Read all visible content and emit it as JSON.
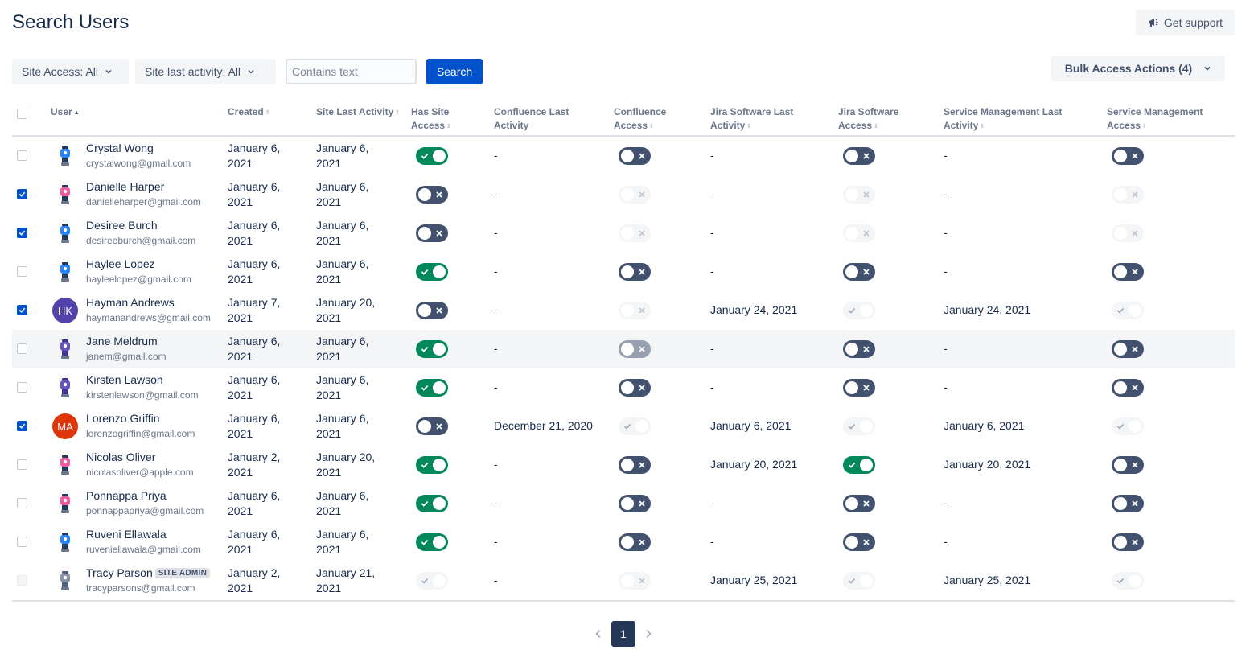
{
  "page": {
    "title": "Search Users"
  },
  "support": {
    "label": "Get support",
    "icon": "megaphone-icon"
  },
  "filters": {
    "site_access": "Site Access: All",
    "site_last_activity": "Site last activity: All",
    "search_placeholder": "Contains text",
    "search_label": "Search",
    "bulk_label": "Bulk Access Actions (4)"
  },
  "columns": {
    "user": "User",
    "created": "Created",
    "site_last_activity": "Site Last Activity",
    "has_site_access_1": "Has Site",
    "has_site_access_2": "Access",
    "confluence_last_1": "Confluence Last",
    "confluence_last_2": "Activity",
    "confluence_access_1": "Confluence",
    "confluence_access_2": "Access",
    "jira_last_1": "Jira Software Last",
    "jira_last_2": "Activity",
    "jira_access_1": "Jira Software",
    "jira_access_2": "Access",
    "sm_last_1": "Service Management Last",
    "sm_last_2": "Activity",
    "sm_access_1": "Service Management",
    "sm_access_2": "Access"
  },
  "colors": {
    "primary": "#0052CC",
    "toggle_on": "#00875A",
    "toggle_off": "#42526E"
  },
  "rows": [
    {
      "name": "Crystal Wong",
      "email": "crystalwong@gmail.com",
      "avatar": "robot-blue",
      "checked": "no",
      "created_1": "January 6,",
      "created_2": "2021",
      "site_1": "January 6,",
      "site_2": "2021",
      "site_access": "on",
      "conf_last": "-",
      "conf_access": "off",
      "jira_last": "-",
      "jira_access": "off",
      "sm_last": "-",
      "sm_access": "off"
    },
    {
      "name": "Danielle Harper",
      "email": "danielleharper@gmail.com",
      "avatar": "robot-pink",
      "checked": "yes",
      "created_1": "January 6,",
      "created_2": "2021",
      "site_1": "January 6,",
      "site_2": "2021",
      "site_access": "off",
      "conf_last": "-",
      "conf_access": "dis-off",
      "jira_last": "-",
      "jira_access": "dis-off",
      "sm_last": "-",
      "sm_access": "dis-off"
    },
    {
      "name": "Desiree Burch",
      "email": "desireeburch@gmail.com",
      "avatar": "robot-blue",
      "checked": "yes",
      "created_1": "January 6,",
      "created_2": "2021",
      "site_1": "January 6,",
      "site_2": "2021",
      "site_access": "off",
      "conf_last": "-",
      "conf_access": "dis-off",
      "jira_last": "-",
      "jira_access": "dis-off",
      "sm_last": "-",
      "sm_access": "dis-off"
    },
    {
      "name": "Haylee Lopez",
      "email": "hayleelopez@gmail.com",
      "avatar": "robot-blue",
      "checked": "no",
      "created_1": "January 6,",
      "created_2": "2021",
      "site_1": "January 6,",
      "site_2": "2021",
      "site_access": "on",
      "conf_last": "-",
      "conf_access": "off",
      "jira_last": "-",
      "jira_access": "off",
      "sm_last": "-",
      "sm_access": "off"
    },
    {
      "name": "Hayman Andrews",
      "email": "haymanandrews@gmail.com",
      "avatar": "initials",
      "initials": "HK",
      "avatar_color": "#5243AA",
      "checked": "yes",
      "created_1": "January 7,",
      "created_2": "2021",
      "site_1": "January 20,",
      "site_2": "2021",
      "site_access": "off",
      "conf_last": "-",
      "conf_access": "dis-off",
      "jira_last": "January 24, 2021",
      "jira_access": "dis-on",
      "sm_last": "January 24, 2021",
      "sm_access": "dis-on"
    },
    {
      "name": "Jane Meldrum",
      "email": "janem@gmail.com",
      "avatar": "robot-purple",
      "checked": "no",
      "highlight": "yes",
      "created_1": "January 6,",
      "created_2": "2021",
      "site_1": "January 6,",
      "site_2": "2021",
      "site_access": "on",
      "conf_last": "-",
      "conf_access": "mid",
      "jira_last": "-",
      "jira_access": "off",
      "sm_last": "-",
      "sm_access": "off"
    },
    {
      "name": "Kirsten Lawson",
      "email": "kirstenlawson@gmail.com",
      "avatar": "robot-purple",
      "checked": "no",
      "created_1": "January 6,",
      "created_2": "2021",
      "site_1": "January 6,",
      "site_2": "2021",
      "site_access": "on",
      "conf_last": "-",
      "conf_access": "off",
      "jira_last": "-",
      "jira_access": "off",
      "sm_last": "-",
      "sm_access": "off"
    },
    {
      "name": "Lorenzo Griffin",
      "email": "lorenzogriffin@gmail.com",
      "avatar": "initials",
      "initials": "MA",
      "avatar_color": "#DE350B",
      "checked": "yes",
      "created_1": "January 6,",
      "created_2": "2021",
      "site_1": "January 6,",
      "site_2": "2021",
      "site_access": "off",
      "conf_last": "December 21, 2020",
      "conf_access": "dis-on",
      "jira_last": "January 6, 2021",
      "jira_access": "dis-on",
      "sm_last": "January 6, 2021",
      "sm_access": "dis-on"
    },
    {
      "name": "Nicolas Oliver",
      "email": "nicolasoliver@apple.com",
      "avatar": "robot-pink",
      "checked": "no",
      "created_1": "January 2,",
      "created_2": "2021",
      "site_1": "January 20,",
      "site_2": "2021",
      "site_access": "on",
      "conf_last": "-",
      "conf_access": "off",
      "jira_last": "January 20, 2021",
      "jira_access": "on",
      "sm_last": "January 20, 2021",
      "sm_access": "off"
    },
    {
      "name": "Ponnappa Priya",
      "email": "ponnappapriya@gmail.com",
      "avatar": "robot-pink",
      "checked": "no",
      "created_1": "January 6,",
      "created_2": "2021",
      "site_1": "January 6,",
      "site_2": "2021",
      "site_access": "on",
      "conf_last": "-",
      "conf_access": "off",
      "jira_last": "-",
      "jira_access": "off",
      "sm_last": "-",
      "sm_access": "off"
    },
    {
      "name": "Ruveni Ellawala",
      "email": "ruveniellawala@gmail.com",
      "avatar": "robot-blue",
      "checked": "no",
      "created_1": "January 6,",
      "created_2": "2021",
      "site_1": "January 6,",
      "site_2": "2021",
      "site_access": "on",
      "conf_last": "-",
      "conf_access": "off",
      "jira_last": "-",
      "jira_access": "off",
      "sm_last": "-",
      "sm_access": "off"
    },
    {
      "name": "Tracy Parson",
      "email": "tracyparsons@gmail.com",
      "avatar": "robot-gray",
      "checked": "disabled",
      "badge": "SITE ADMIN",
      "created_1": "January 2,",
      "created_2": "2021",
      "site_1": "January 21,",
      "site_2": "2021",
      "site_access": "dis-on",
      "conf_last": "-",
      "conf_access": "dis-off",
      "jira_last": "January 25, 2021",
      "jira_access": "dis-on",
      "sm_last": "January 25, 2021",
      "sm_access": "dis-on"
    }
  ],
  "pagination": {
    "current": "1"
  }
}
